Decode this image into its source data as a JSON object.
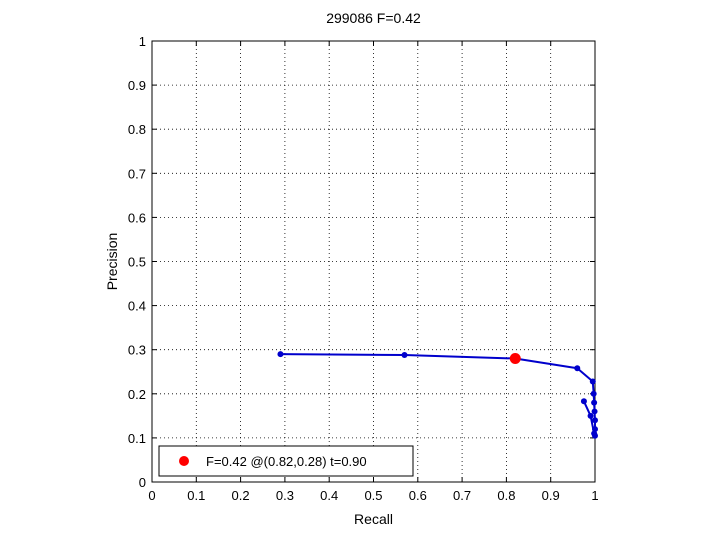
{
  "chart_data": {
    "type": "line",
    "title": "299086 F=0.42",
    "xlabel": "Recall",
    "ylabel": "Precision",
    "xlim": [
      0,
      1
    ],
    "ylim": [
      0,
      1
    ],
    "xticks": [
      "0",
      "0.1",
      "0.2",
      "0.3",
      "0.4",
      "0.5",
      "0.6",
      "0.7",
      "0.8",
      "0.9",
      "1"
    ],
    "yticks": [
      "0",
      "0.1",
      "0.2",
      "0.3",
      "0.4",
      "0.5",
      "0.6",
      "0.7",
      "0.8",
      "0.9",
      "1"
    ],
    "grid": true,
    "legend_position": "bottom-left",
    "series": [
      {
        "color": "#0000cc",
        "points": [
          [
            0.29,
            0.29
          ],
          [
            0.57,
            0.288
          ],
          [
            0.82,
            0.28
          ],
          [
            0.96,
            0.258
          ],
          [
            0.995,
            0.228
          ],
          [
            0.997,
            0.2
          ],
          [
            0.998,
            0.18
          ],
          [
            0.999,
            0.16
          ],
          [
            1.0,
            0.14
          ],
          [
            1.0,
            0.12
          ],
          [
            1.0,
            0.105
          ],
          [
            0.998,
            0.11
          ],
          [
            0.99,
            0.15
          ],
          [
            0.975,
            0.183
          ]
        ]
      }
    ],
    "best_point": {
      "recall": 0.82,
      "precision": 0.28,
      "color": "#ff0000",
      "label": "F=0.42 @(0.82,0.28) t=0.90"
    }
  }
}
